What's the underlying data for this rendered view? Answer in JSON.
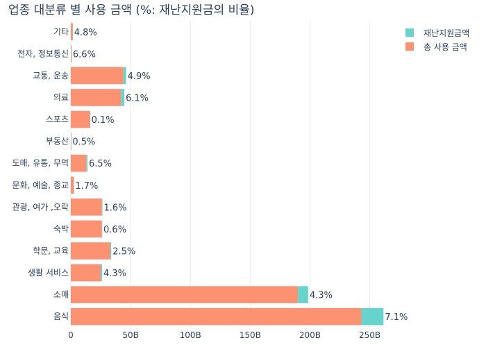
{
  "chart_data": {
    "type": "bar",
    "orientation": "horizontal",
    "barmode": "stack",
    "title": "업종 대분류 별 사용 금액 (%: 재난지원금의 비율)",
    "categories": [
      "기타",
      "전자, 정보통신",
      "교통, 운송",
      "의료",
      "스포츠",
      "부동산",
      "도매, 유통, 무역",
      "문화, 예술, 종교",
      "관광, 여가 ,오락",
      "숙박",
      "학문, 교육",
      "생활 서비스",
      "소매",
      "음식"
    ],
    "series": [
      {
        "name": "총 사용 금액",
        "color": "#fc9272",
        "values": [
          1.5,
          0.5,
          44,
          42,
          16,
          0.2,
          13,
          2.5,
          26,
          26,
          33,
          25,
          190,
          243
        ]
      },
      {
        "name": "재난지원금액",
        "color": "#66d4cc",
        "values": [
          0.07,
          0.03,
          2.2,
          2.7,
          0.02,
          0.001,
          0.9,
          0.04,
          0.4,
          0.15,
          0.8,
          1.1,
          8.5,
          18.5
        ]
      }
    ],
    "bar_labels": [
      "4.8%",
      "6.6%",
      "4.9%",
      "6.1%",
      "0.1%",
      "0.5%",
      "6.5%",
      "1.7%",
      "1.6%",
      "0.6%",
      "2.5%",
      "4.3%",
      "4.3%",
      "7.1%"
    ],
    "xticks": [
      0,
      50,
      100,
      150,
      200,
      250
    ],
    "xtick_labels": [
      "0",
      "50B",
      "100B",
      "150B",
      "200B",
      "250B"
    ],
    "xlim": [
      0,
      270
    ],
    "grid": true,
    "legend_position": "top-right",
    "legend": [
      {
        "name": "재난지원금액",
        "color": "#66d4cc"
      },
      {
        "name": "총 사용 금액",
        "color": "#fc9272"
      }
    ]
  }
}
